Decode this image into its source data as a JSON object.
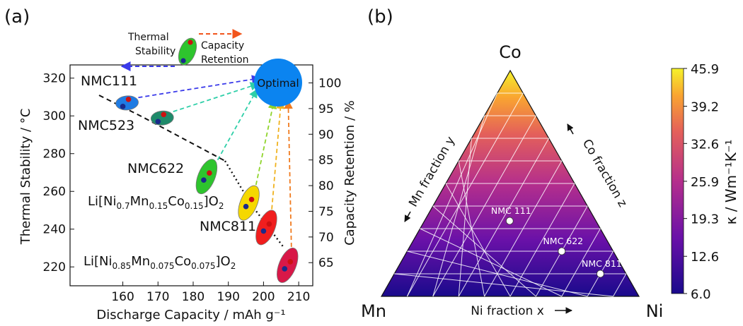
{
  "chart_data": [
    {
      "panel": "(a)",
      "type": "scatter",
      "xlabel": "Discharge Capacity  / mAh g⁻¹",
      "ylabel_left": "Thermal Stability / °C",
      "ylabel_right": "Capacity Retention / %",
      "xlim": [
        145,
        214
      ],
      "ylim_left": [
        210,
        327
      ],
      "ylim_right": [
        60.5,
        103.5
      ],
      "x_ticks": [
        160,
        170,
        180,
        190,
        200,
        210
      ],
      "y_ticks_left": [
        220,
        240,
        260,
        280,
        300,
        320
      ],
      "y_ticks_right": [
        65,
        70,
        75,
        80,
        85,
        90,
        95,
        100
      ],
      "materials": [
        {
          "label": "NMC111",
          "capacity": 160,
          "thermal_stability": 305,
          "capacity_retention": 97,
          "color": "#1f7be3"
        },
        {
          "label": "NMC523",
          "capacity": 170,
          "thermal_stability": 297,
          "capacity_retention": 95,
          "color": "#1e8a6a"
        },
        {
          "label": "NMC622",
          "capacity": 183,
          "thermal_stability": 266,
          "capacity_retention": 87,
          "color": "#2ec42e"
        },
        {
          "label_parts": [
            "Li[Ni",
            "0.7",
            "Mn",
            "0.15",
            "Co",
            "0.15",
            "]O",
            "2"
          ],
          "capacity": 195,
          "thermal_stability": 252,
          "capacity_retention": 83,
          "color": "#f5d800"
        },
        {
          "label": "NMC811",
          "capacity": 200,
          "thermal_stability": 239,
          "capacity_retention": 76,
          "color": "#f01e1e"
        },
        {
          "label_parts": [
            "Li[Ni",
            "0.85",
            "Mn",
            "0.075",
            "Co",
            "0.075",
            "]O",
            "2"
          ],
          "capacity": 206,
          "thermal_stability": 219,
          "capacity_retention": 70,
          "color": "#d81848"
        }
      ],
      "optimal": {
        "label": "Optimal",
        "capacity": 205,
        "thermal_stability": 320,
        "color": "#0b84f0"
      },
      "legend": {
        "thermal": [
          "Thermal",
          "Stability"
        ],
        "capacity": [
          "Capacity",
          "Retention"
        ]
      },
      "colors": {
        "thermal_marker": "#1b2a8a",
        "capacity_marker": "#cc1111",
        "thermal_arrow": "#3b3bea",
        "capacity_arrow": "#f2551c"
      }
    },
    {
      "panel": "(b)",
      "type": "heatmap",
      "subtype": "ternary",
      "corners": {
        "top": "Co",
        "left": "Mn",
        "right": "Ni"
      },
      "axis_labels": {
        "left_edge": "Mn fraction y",
        "right_edge": "Co fraction z",
        "bottom": "Ni fraction x"
      },
      "colorbar_label": "κ  / Wm⁻¹K⁻¹",
      "colorbar_ticks": [
        "45.9",
        "39.2",
        "32.6",
        "25.9",
        "19.3",
        "12.6",
        "6.0"
      ],
      "colorbar_range": [
        6.0,
        45.9
      ],
      "points": [
        {
          "label": "NMC 111",
          "ni": 0.333,
          "mn": 0.333,
          "co": 0.333
        },
        {
          "label": "NMC 622",
          "ni": 0.6,
          "mn": 0.2,
          "co": 0.2
        },
        {
          "label": "NMC 811",
          "ni": 0.8,
          "mn": 0.1,
          "co": 0.1
        }
      ]
    }
  ]
}
